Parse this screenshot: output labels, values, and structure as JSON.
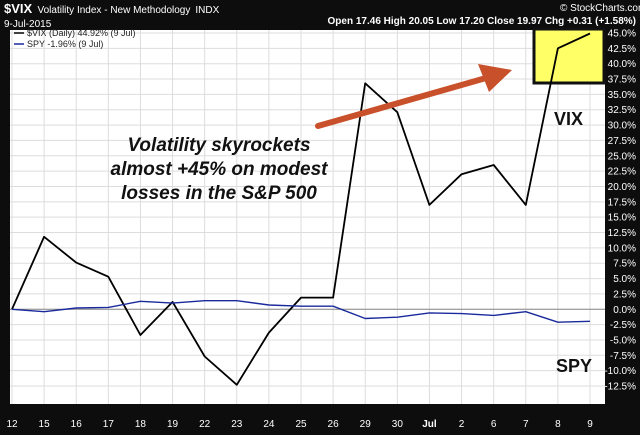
{
  "header": {
    "symbol": "$VIX",
    "name": "Volatility Index - New Methodology",
    "exchange": "INDX",
    "date": "9-Jul-2015",
    "watermark": "© StockCharts.com",
    "quote": "Open 17.46  High 20.05  Low 17.20  Close 19.97  Chg +0.31 (+1.58%)"
  },
  "legend": [
    {
      "label": "$VIX (Daily) 44.92% (9 Jul)",
      "color": "#000000"
    },
    {
      "label": "SPY -1.96% (9 Jul)",
      "color": "#1a2a9c"
    }
  ],
  "annotations": {
    "main": [
      "Volatility skyrockets",
      "almost +45% on modest",
      "losses in the S&P 500"
    ],
    "vix_label": "VIX",
    "spy_label": "SPY"
  },
  "colors": {
    "background": "#0d0d0d",
    "plot_bg": "#ffffff",
    "vix_line": "#000000",
    "spy_line": "#1a2a9c",
    "arrow": "#c8502a",
    "highlight_fill": "#ffff66",
    "highlight_border": "#111111",
    "zero_line": "#888888"
  },
  "chart_data": {
    "type": "line",
    "x": [
      "12",
      "15",
      "16",
      "17",
      "18",
      "19",
      "22",
      "23",
      "24",
      "25",
      "26",
      "29",
      "30",
      "Jul",
      "2",
      "6",
      "7",
      "8",
      "9"
    ],
    "series": [
      {
        "name": "$VIX (Daily)",
        "values": [
          0,
          11.8,
          7.6,
          5.3,
          -4.2,
          1.2,
          -7.7,
          -12.3,
          -3.8,
          1.9,
          1.9,
          36.8,
          32.1,
          17.0,
          22.0,
          23.5,
          17.0,
          42.5,
          44.92
        ]
      },
      {
        "name": "SPY",
        "values": [
          0,
          -0.4,
          0.2,
          0.3,
          1.3,
          1.0,
          1.4,
          1.4,
          0.7,
          0.5,
          0.5,
          -1.5,
          -1.3,
          -0.6,
          -0.7,
          -1.0,
          -0.4,
          -2.1,
          -1.96
        ]
      }
    ],
    "yticks": [
      "45.0%",
      "42.5%",
      "40.0%",
      "37.5%",
      "35.0%",
      "32.5%",
      "30.0%",
      "27.5%",
      "25.0%",
      "22.5%",
      "20.0%",
      "17.5%",
      "15.0%",
      "12.5%",
      "10.0%",
      "7.5%",
      "5.0%",
      "2.5%",
      "0.0%",
      "-2.5%",
      "-5.0%",
      "-7.5%",
      "-10.0%",
      "-12.5%"
    ],
    "ylim": [
      -12.5,
      45
    ],
    "y_axis_side": "right",
    "grid": true,
    "legend_position": "top-left"
  }
}
